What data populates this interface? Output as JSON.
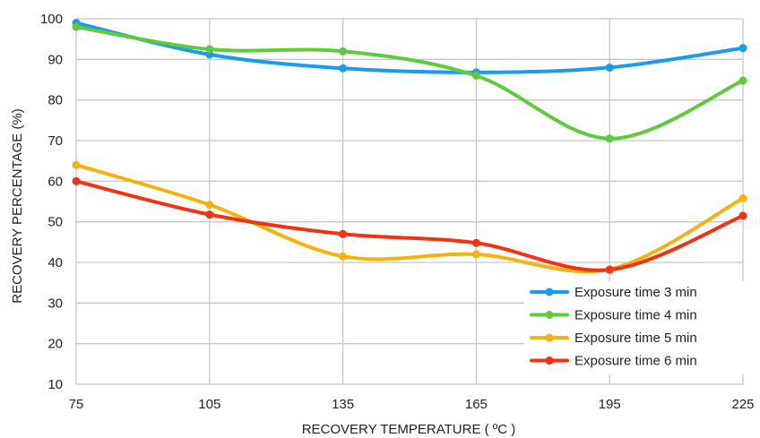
{
  "chart_data": {
    "type": "line",
    "title": "",
    "xlabel": "RECOVERY TEMPERATURE ( ºC )",
    "ylabel": "RECOVERY PERCENTAGE (%)",
    "x": [
      75,
      105,
      135,
      165,
      195,
      225
    ],
    "xticks": [
      "75",
      "105",
      "135",
      "165",
      "195",
      "225"
    ],
    "yticks": [
      "10",
      "20",
      "30",
      "40",
      "50",
      "60",
      "70",
      "80",
      "90",
      "100"
    ],
    "xlim": [
      75,
      225
    ],
    "ylim": [
      10,
      100
    ],
    "grid": true,
    "smooth": true,
    "legend_position": "bottom-right",
    "series": [
      {
        "name": "Exposure time 3 min",
        "color": "#1a9bef",
        "values": [
          99,
          91.2,
          87.8,
          86.8,
          88.0,
          92.8
        ]
      },
      {
        "name": "Exposure time 4 min",
        "color": "#5ecb3a",
        "values": [
          98,
          92.5,
          92.0,
          86.0,
          70.5,
          84.8
        ]
      },
      {
        "name": "Exposure time 5 min",
        "color": "#f5b20f",
        "values": [
          64,
          54.2,
          41.5,
          42.0,
          38.3,
          55.8
        ]
      },
      {
        "name": "Exposure time 6 min",
        "color": "#f03312",
        "values": [
          60,
          51.8,
          47.0,
          44.8,
          38.2,
          51.5
        ]
      }
    ]
  }
}
